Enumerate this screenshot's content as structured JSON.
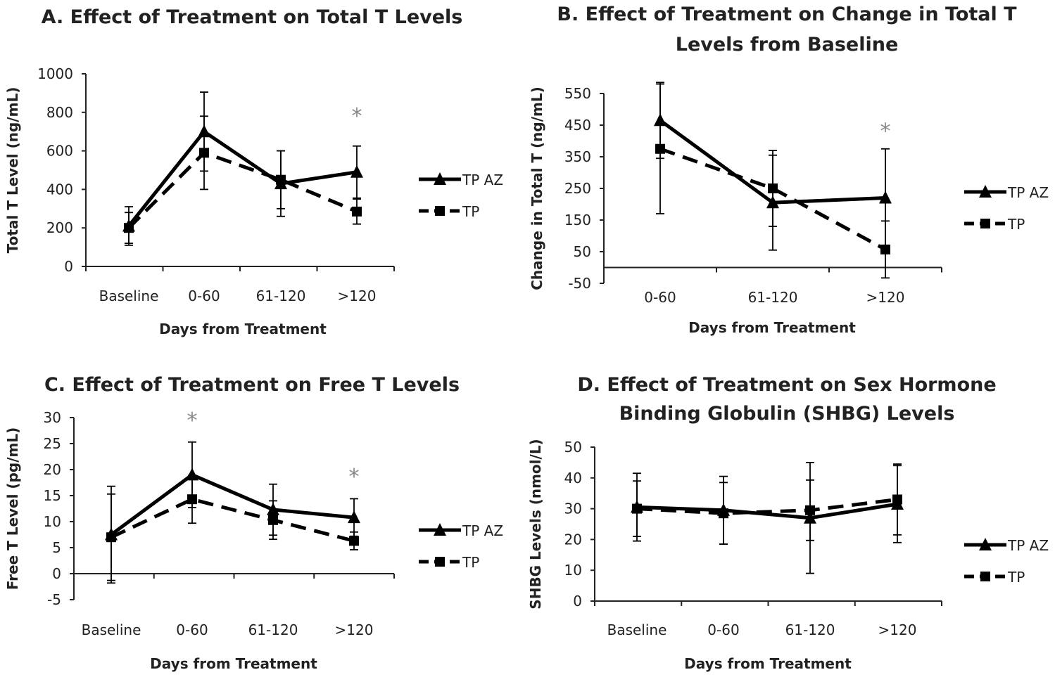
{
  "chart_data": [
    {
      "type": "line",
      "title": [
        "A. Effect of Treatment on Total T Levels"
      ],
      "xlabel": "Days from Treatment",
      "ylabel": "Total T Level (ng/mL)",
      "categories": [
        "Baseline",
        "0-60",
        "61-120",
        ">120"
      ],
      "ylim": [
        0,
        1000
      ],
      "yticks": [
        0,
        200,
        400,
        600,
        800,
        1000
      ],
      "series": [
        {
          "name": "TP AZ",
          "values": [
            210,
            700,
            430,
            490
          ],
          "errors": [
            100,
            205,
            170,
            135
          ]
        },
        {
          "name": "TP",
          "values": [
            200,
            590,
            450,
            285
          ],
          "errors": [
            80,
            190,
            150,
            65
          ]
        }
      ],
      "significance": [
        {
          "category": ">120",
          "value": 795,
          "label": "*"
        }
      ]
    },
    {
      "type": "line",
      "title": [
        "B. Effect of Treatment on Change in Total T",
        "Levels from Baseline"
      ],
      "xlabel": "Days from Treatment",
      "ylabel": "Change in Total T (ng/mL)",
      "categories": [
        "0-60",
        "61-120",
        ">120"
      ],
      "ylim": [
        -50,
        550
      ],
      "yticks": [
        -50,
        50,
        150,
        250,
        350,
        450,
        550
      ],
      "series": [
        {
          "name": "TP AZ",
          "values": [
            465,
            205,
            220
          ],
          "errors": [
            120,
            150,
            155
          ]
        },
        {
          "name": "TP",
          "values": [
            375,
            250,
            57
          ],
          "errors": [
            205,
            120,
            90
          ]
        }
      ],
      "significance": [
        {
          "category": ">120",
          "value": 440,
          "label": "*"
        }
      ]
    },
    {
      "type": "line",
      "title": [
        "C. Effect of Treatment on Free T Levels"
      ],
      "xlabel": "Days from Treatment",
      "ylabel": "Free T Level (pg/mL)",
      "categories": [
        "Baseline",
        "0-60",
        "61-120",
        ">120"
      ],
      "ylim": [
        -5,
        30
      ],
      "yticks": [
        -5,
        0,
        5,
        10,
        15,
        20,
        25,
        30
      ],
      "series": [
        {
          "name": "TP AZ",
          "values": [
            7.5,
            19,
            12.3,
            10.8
          ],
          "errors": [
            9.3,
            6.3,
            4.9,
            3.6
          ]
        },
        {
          "name": "TP",
          "values": [
            7,
            14.3,
            10.3,
            6.3
          ],
          "errors": [
            8.3,
            4.6,
            3.7,
            1.7
          ]
        }
      ],
      "significance": [
        {
          "category": "0-60",
          "value": 30,
          "label": "*"
        },
        {
          "category": ">120",
          "value": 19.2,
          "label": "*"
        }
      ]
    },
    {
      "type": "line",
      "title": [
        "D. Effect of Treatment on Sex Hormone",
        "Binding Globulin (SHBG) Levels"
      ],
      "xlabel": "Days from Treatment",
      "ylabel": "SHBG Levels (nmol/L)",
      "categories": [
        "Baseline",
        "0-60",
        "61-120",
        ">120"
      ],
      "ylim": [
        0,
        50
      ],
      "yticks": [
        0,
        10,
        20,
        30,
        40,
        50
      ],
      "series": [
        {
          "name": "TP AZ",
          "values": [
            30.5,
            29.5,
            27,
            31.5
          ],
          "errors": [
            11,
            11,
            18,
            12.5
          ]
        },
        {
          "name": "TP",
          "values": [
            30,
            28.5,
            29.5,
            33
          ],
          "errors": [
            9,
            10,
            9.8,
            11.5
          ]
        }
      ],
      "significance": []
    }
  ]
}
